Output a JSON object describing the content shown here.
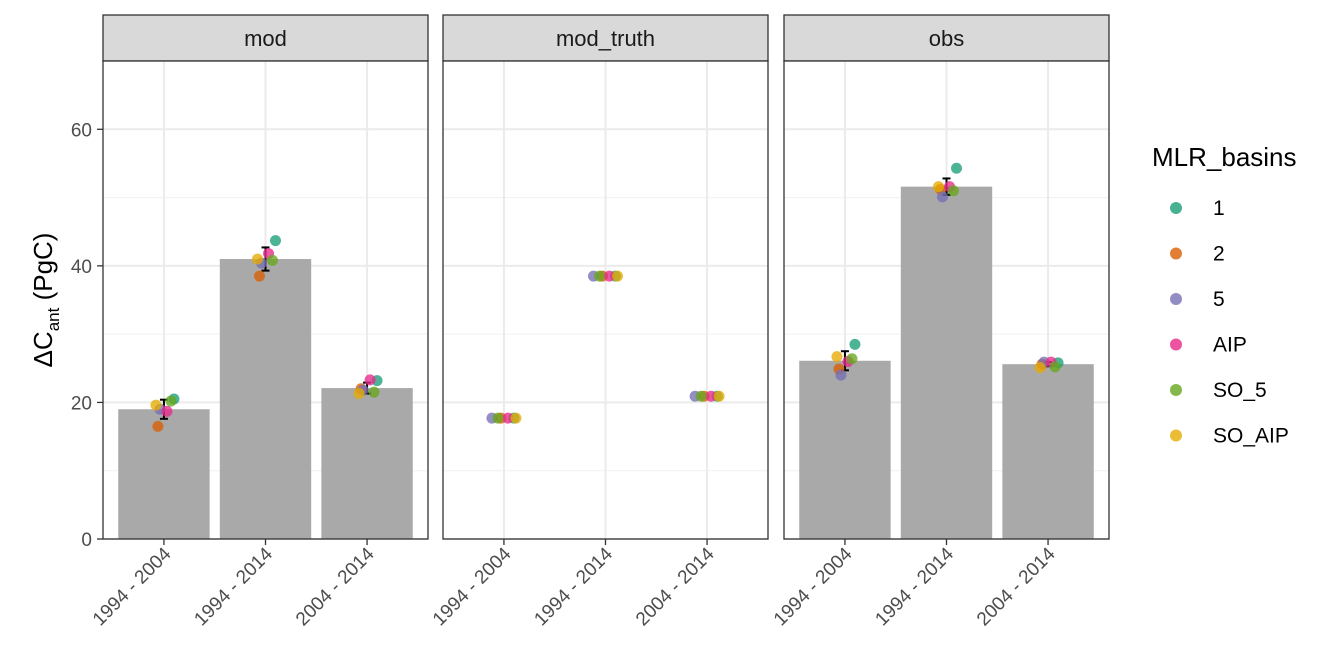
{
  "chart_data": {
    "type": "bar",
    "ylabel": {
      "main": "ΔC",
      "sub": "ant",
      "unit": " (PgC)"
    },
    "ylim": [
      0,
      70
    ],
    "yticks": [
      0,
      20,
      40,
      60
    ],
    "categories": [
      "1994 - 2004",
      "1994 - 2014",
      "2004 - 2014"
    ],
    "legend": {
      "title": "MLR_basins",
      "position": "right",
      "items": [
        {
          "label": "1",
          "color": "#1B9E77"
        },
        {
          "label": "2",
          "color": "#D95F02"
        },
        {
          "label": "5",
          "color": "#7570B3"
        },
        {
          "label": "AIP",
          "color": "#E7298A"
        },
        {
          "label": "SO_5",
          "color": "#66A61E"
        },
        {
          "label": "SO_AIP",
          "color": "#E6AB02"
        }
      ]
    },
    "panels": [
      {
        "title": "mod",
        "bars": [
          19.0,
          41.0,
          22.1
        ],
        "errors": [
          [
            17.6,
            20.4
          ],
          [
            39.3,
            42.7
          ],
          [
            21.3,
            22.9
          ]
        ],
        "points": [
          [
            {
              "basin": "1",
              "y": 20.5
            },
            {
              "basin": "2",
              "y": 16.5
            },
            {
              "basin": "5",
              "y": 19.0
            },
            {
              "basin": "AIP",
              "y": 18.7
            },
            {
              "basin": "SO_5",
              "y": 20.2
            },
            {
              "basin": "SO_AIP",
              "y": 19.6
            }
          ],
          [
            {
              "basin": "1",
              "y": 43.7
            },
            {
              "basin": "2",
              "y": 38.5
            },
            {
              "basin": "5",
              "y": 40.4
            },
            {
              "basin": "AIP",
              "y": 41.8
            },
            {
              "basin": "SO_5",
              "y": 40.8
            },
            {
              "basin": "SO_AIP",
              "y": 41.0
            }
          ],
          [
            {
              "basin": "1",
              "y": 23.2
            },
            {
              "basin": "2",
              "y": 22.0
            },
            {
              "basin": "5",
              "y": 21.8
            },
            {
              "basin": "AIP",
              "y": 23.3
            },
            {
              "basin": "SO_5",
              "y": 21.5
            },
            {
              "basin": "SO_AIP",
              "y": 21.3
            }
          ]
        ]
      },
      {
        "title": "mod_truth",
        "bars": [],
        "errors": [],
        "points": [
          [
            {
              "basin": "1",
              "y": 17.7
            },
            {
              "basin": "2",
              "y": 17.7
            },
            {
              "basin": "5",
              "y": 17.7
            },
            {
              "basin": "AIP",
              "y": 17.7
            },
            {
              "basin": "SO_5",
              "y": 17.7
            },
            {
              "basin": "SO_AIP",
              "y": 17.7
            }
          ],
          [
            {
              "basin": "1",
              "y": 38.5
            },
            {
              "basin": "2",
              "y": 38.5
            },
            {
              "basin": "5",
              "y": 38.5
            },
            {
              "basin": "AIP",
              "y": 38.5
            },
            {
              "basin": "SO_5",
              "y": 38.5
            },
            {
              "basin": "SO_AIP",
              "y": 38.5
            }
          ],
          [
            {
              "basin": "1",
              "y": 20.9
            },
            {
              "basin": "2",
              "y": 20.9
            },
            {
              "basin": "5",
              "y": 20.9
            },
            {
              "basin": "AIP",
              "y": 20.9
            },
            {
              "basin": "SO_5",
              "y": 20.9
            },
            {
              "basin": "SO_AIP",
              "y": 20.9
            }
          ]
        ]
      },
      {
        "title": "obs",
        "bars": [
          26.1,
          51.6,
          25.6
        ],
        "errors": [
          [
            24.7,
            27.5
          ],
          [
            50.4,
            52.8
          ],
          [
            25.3,
            25.9
          ]
        ],
        "points": [
          [
            {
              "basin": "1",
              "y": 28.5
            },
            {
              "basin": "2",
              "y": 24.9
            },
            {
              "basin": "5",
              "y": 24.0
            },
            {
              "basin": "AIP",
              "y": 26.0
            },
            {
              "basin": "SO_5",
              "y": 26.4
            },
            {
              "basin": "SO_AIP",
              "y": 26.7
            }
          ],
          [
            {
              "basin": "1",
              "y": 54.3
            },
            {
              "basin": "2",
              "y": 51.2
            },
            {
              "basin": "5",
              "y": 50.1
            },
            {
              "basin": "AIP",
              "y": 51.6
            },
            {
              "basin": "SO_5",
              "y": 51.0
            },
            {
              "basin": "SO_AIP",
              "y": 51.6
            }
          ],
          [
            {
              "basin": "1",
              "y": 25.8
            },
            {
              "basin": "2",
              "y": 25.6
            },
            {
              "basin": "5",
              "y": 25.9
            },
            {
              "basin": "AIP",
              "y": 25.9
            },
            {
              "basin": "SO_5",
              "y": 25.2
            },
            {
              "basin": "SO_AIP",
              "y": 25.1
            }
          ]
        ]
      }
    ]
  }
}
